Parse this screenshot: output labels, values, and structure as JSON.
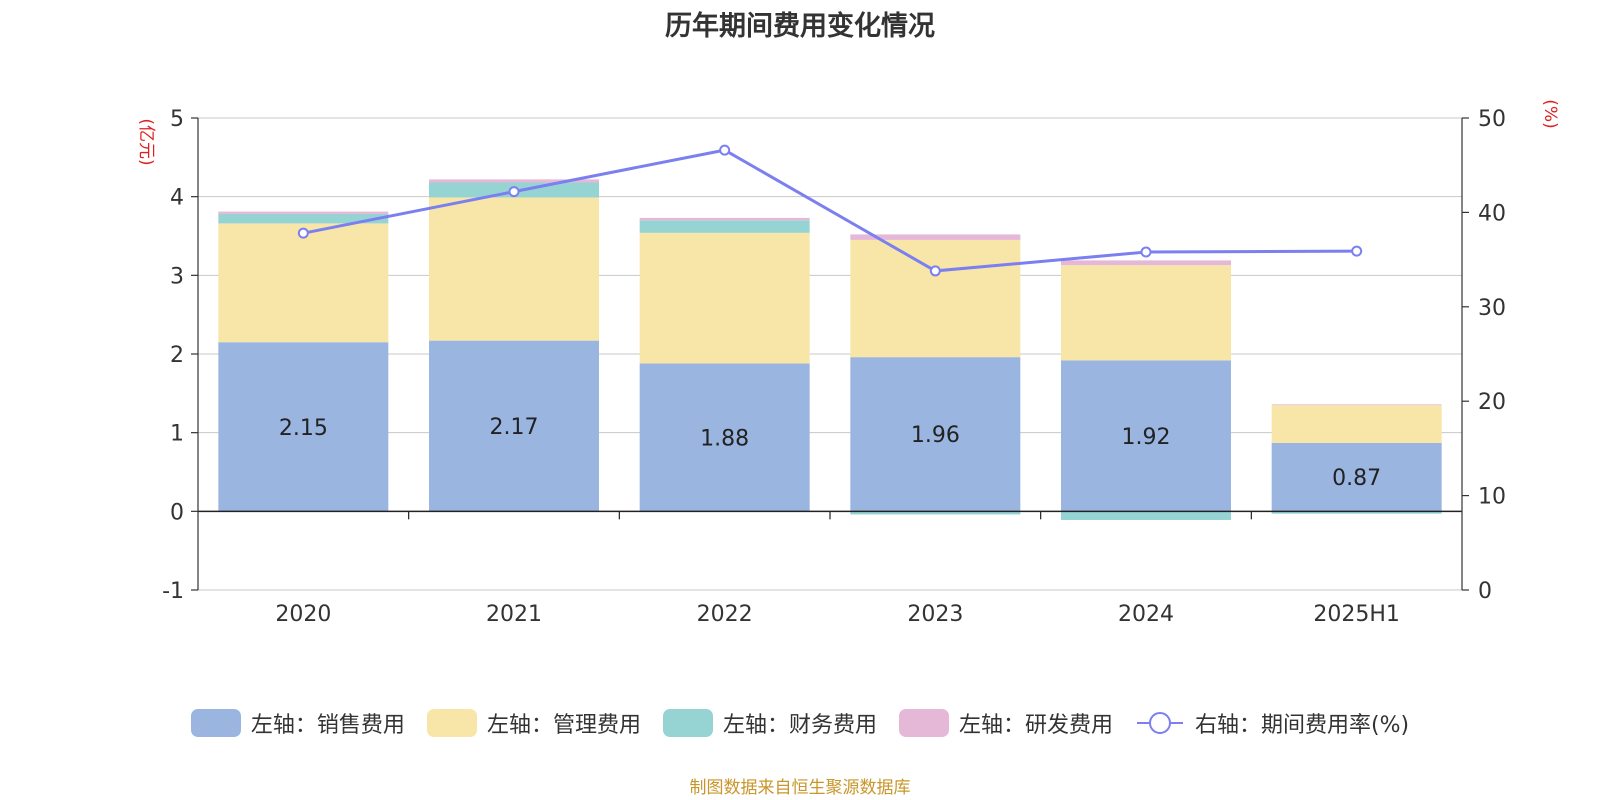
{
  "chart_data": {
    "type": "bar",
    "title": "历年期间费用变化情况",
    "categories": [
      "2020",
      "2021",
      "2022",
      "2023",
      "2024",
      "2025H1"
    ],
    "series": [
      {
        "name": "左轴：销售费用",
        "axis": "left",
        "color": "#9ab6e0",
        "values": [
          2.15,
          2.17,
          1.88,
          1.96,
          1.92,
          0.87
        ]
      },
      {
        "name": "左轴：管理费用",
        "axis": "left",
        "color": "#f7e6a8",
        "values": [
          1.51,
          1.82,
          1.66,
          1.49,
          1.21,
          0.48
        ]
      },
      {
        "name": "左轴：财务费用",
        "axis": "left",
        "color": "#96d4d4",
        "values": [
          0.12,
          0.19,
          0.16,
          -0.04,
          -0.11,
          -0.03
        ]
      },
      {
        "name": "左轴：研发费用",
        "axis": "left",
        "color": "#e6b8d8",
        "values": [
          0.03,
          0.04,
          0.03,
          0.07,
          0.06,
          0.01
        ]
      },
      {
        "name": "右轴：期间费用率(%)",
        "type": "line",
        "axis": "right",
        "color": "#7b7ff0",
        "values": [
          37.8,
          42.2,
          46.6,
          33.8,
          35.8,
          35.9
        ]
      }
    ],
    "bar_labels": [
      "2.15",
      "2.17",
      "1.88",
      "1.96",
      "1.92",
      "0.87"
    ],
    "left_axis": {
      "label": "(亿元)",
      "ylim": [
        -1,
        5
      ],
      "ticks": [
        "-1",
        "0",
        "1",
        "2",
        "3",
        "4",
        "5"
      ]
    },
    "right_axis": {
      "label": "(%)",
      "ylim": [
        0,
        50
      ],
      "ticks": [
        "0",
        "10",
        "20",
        "30",
        "40",
        "50"
      ]
    },
    "grid": true,
    "legend_position": "bottom"
  },
  "source_note": "制图数据来自恒生聚源数据库"
}
